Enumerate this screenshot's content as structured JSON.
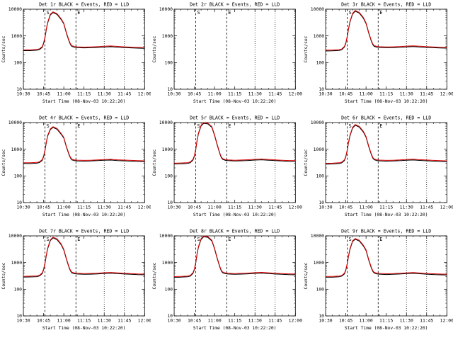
{
  "window": {
    "background": "#ffffff",
    "foreground": "#000000"
  },
  "chart_defaults": {
    "type": "line",
    "ylabel": "Counts/sec",
    "xlabel": "Start Time (08-Nov-03 10:22:20)",
    "x_range_minutes": [
      0,
      90
    ],
    "x_tick_minutes": [
      0,
      15,
      30,
      45,
      60,
      75,
      90
    ],
    "x_tick_labels": [
      "10:30",
      "10:45",
      "11:00",
      "11:15",
      "11:30",
      "11:45",
      "12:00"
    ],
    "y_scale": "log",
    "y_range": [
      10,
      10000
    ],
    "y_tick_values": [
      10,
      100,
      1000,
      10000
    ],
    "y_tick_labels": [
      "10",
      "100",
      "1000",
      "10000"
    ],
    "grid": false,
    "legend_in_title": true,
    "legend": [
      {
        "name": "Events",
        "color": "#000000"
      },
      {
        "name": "LLD",
        "color": "#dd0000"
      }
    ],
    "markers": {
      "dashed": [
        {
          "minute": 16,
          "label": "S"
        },
        {
          "minute": 39,
          "label": "E"
        }
      ],
      "dotted": [
        60,
        75
      ]
    },
    "x": [
      0,
      5,
      10,
      12,
      14,
      15,
      16,
      17,
      18,
      20,
      22,
      25,
      28,
      30,
      32,
      34,
      35,
      36,
      38,
      40,
      45,
      50,
      55,
      60,
      65,
      70,
      75,
      80,
      85,
      90
    ]
  },
  "chart_data": [
    {
      "title": "Det 1r BLACK = Events, RED = LLD",
      "counts": [
        300,
        300,
        310,
        330,
        400,
        550,
        900,
        1800,
        3200,
        6500,
        8000,
        6800,
        4400,
        3000,
        1300,
        650,
        500,
        430,
        400,
        390,
        380,
        385,
        395,
        410,
        420,
        405,
        390,
        380,
        370,
        365
      ]
    },
    {
      "title": "Det 2r BLACK = Events, RED = LLD",
      "counts": []
    },
    {
      "title": "Det 3r BLACK = Events, RED = LLD",
      "counts": [
        290,
        295,
        305,
        325,
        410,
        560,
        950,
        1900,
        3400,
        7000,
        9000,
        7600,
        4900,
        3100,
        1350,
        660,
        505,
        435,
        405,
        395,
        385,
        390,
        400,
        415,
        425,
        410,
        395,
        385,
        375,
        370
      ]
    },
    {
      "title": "Det 4r BLACK = Events, RED = LLD",
      "counts": [
        310,
        310,
        320,
        340,
        410,
        560,
        920,
        1850,
        3300,
        5800,
        7000,
        6000,
        3900,
        2800,
        1250,
        640,
        495,
        425,
        400,
        390,
        382,
        388,
        398,
        412,
        418,
        402,
        392,
        382,
        372,
        368
      ]
    },
    {
      "title": "Det 5r BLACK = Events, RED = LLD",
      "counts": [
        300,
        305,
        315,
        335,
        420,
        580,
        1000,
        2200,
        4000,
        8000,
        10000,
        9500,
        7000,
        3500,
        1500,
        700,
        520,
        445,
        410,
        398,
        388,
        394,
        404,
        420,
        430,
        414,
        398,
        388,
        378,
        372
      ]
    },
    {
      "title": "Det 6r BLACK = Events, RED = LLD",
      "counts": [
        295,
        300,
        310,
        330,
        405,
        555,
        930,
        1870,
        3250,
        6600,
        8500,
        7200,
        4700,
        3000,
        1320,
        655,
        500,
        432,
        402,
        392,
        383,
        388,
        397,
        413,
        422,
        407,
        393,
        383,
        373,
        367
      ]
    },
    {
      "title": "Det 7r BLACK = Events, RED = LLD",
      "counts": [
        305,
        308,
        316,
        336,
        415,
        570,
        960,
        1920,
        3450,
        7100,
        9000,
        7700,
        5000,
        3150,
        1380,
        665,
        508,
        438,
        406,
        396,
        386,
        391,
        401,
        416,
        426,
        411,
        396,
        386,
        376,
        371
      ]
    },
    {
      "title": "Det 8r BLACK = Events, RED = LLD",
      "counts": [
        298,
        303,
        313,
        333,
        418,
        575,
        990,
        2150,
        3950,
        7900,
        10000,
        9400,
        6900,
        3450,
        1480,
        695,
        518,
        443,
        409,
        397,
        387,
        393,
        403,
        419,
        429,
        413,
        397,
        387,
        377,
        371
      ]
    },
    {
      "title": "Det 9r BLACK = Events, RED = LLD",
      "counts": [
        302,
        302,
        312,
        332,
        402,
        552,
        905,
        1810,
        3220,
        6550,
        8000,
        6850,
        4450,
        3020,
        1310,
        652,
        502,
        432,
        401,
        391,
        381,
        386,
        396,
        411,
        421,
        406,
        391,
        381,
        371,
        366
      ]
    }
  ]
}
